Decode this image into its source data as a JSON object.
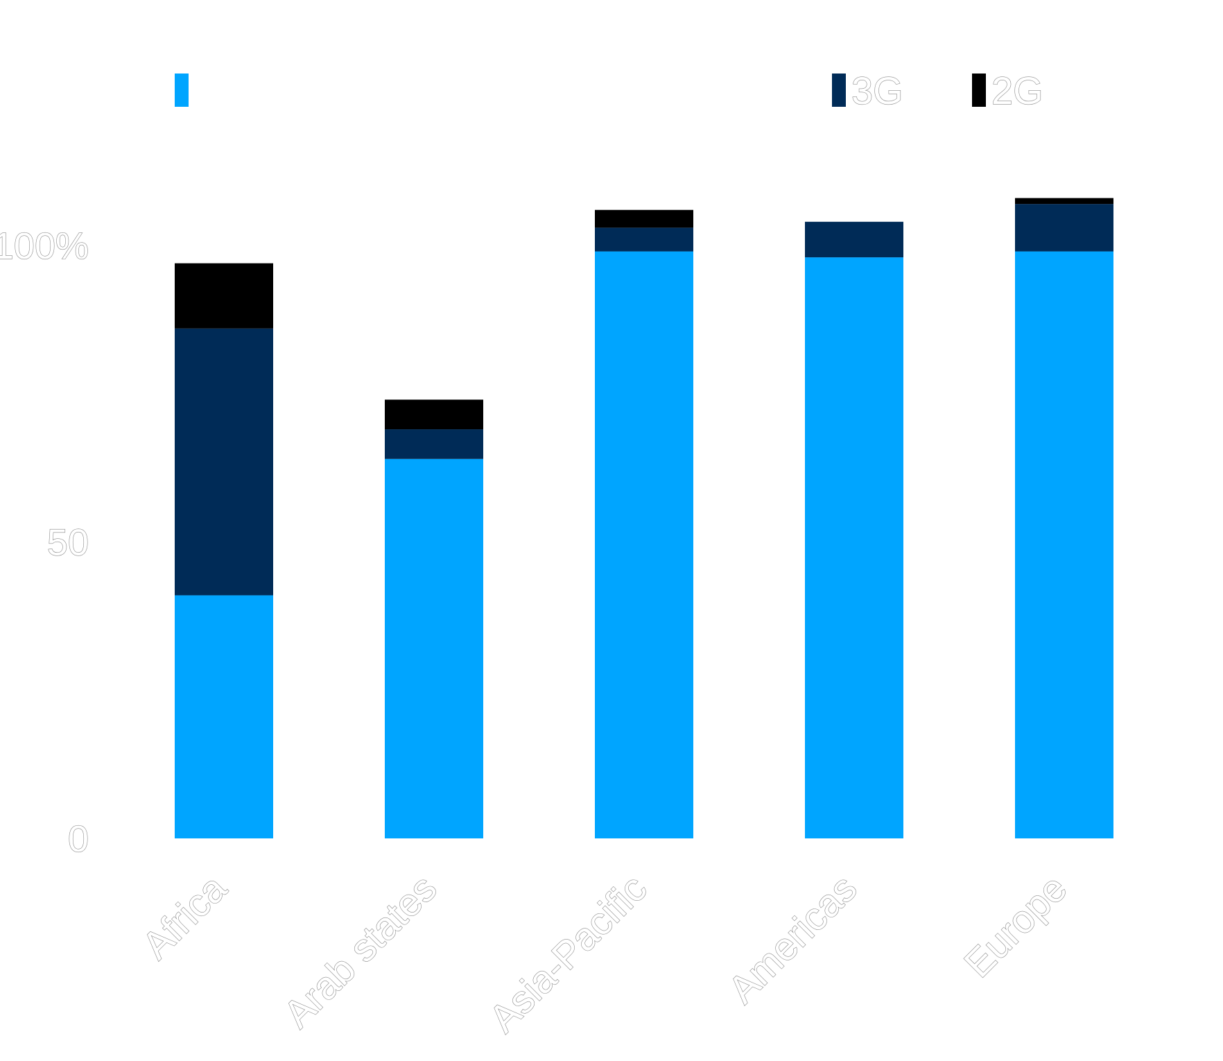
{
  "chart_data": {
    "type": "bar",
    "stacked": true,
    "categories": [
      "Africa",
      "Arab states",
      "Asia-Pacific",
      "Americas",
      "Europe"
    ],
    "series": [
      {
        "name": "",
        "color": "#00a5ff",
        "values": [
          41,
          64,
          99,
          98,
          99
        ]
      },
      {
        "name": "3G",
        "color": "#002b57",
        "values": [
          45,
          5,
          4,
          6,
          8
        ]
      },
      {
        "name": "2G",
        "color": "#000000",
        "values": [
          11,
          5,
          3,
          0,
          1
        ]
      }
    ],
    "yaxis": {
      "ticks": [
        0,
        50,
        100
      ],
      "tick_labels": [
        "0",
        "50",
        "100%"
      ]
    },
    "ylim": [
      0,
      106
    ],
    "grid": false,
    "legend": "top"
  }
}
